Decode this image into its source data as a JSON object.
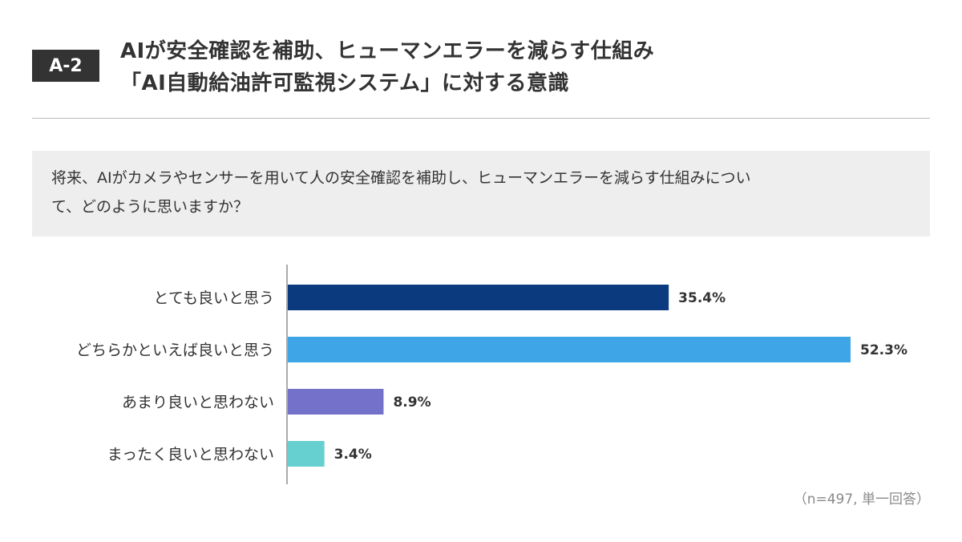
{
  "header": {
    "badge": "A-2",
    "title_line1": "AIが安全確認を補助、ヒューマンエラーを減らす仕組み",
    "title_line2": "「AI自動給油許可監視システム」に対する意識"
  },
  "question": {
    "line1": "将来、AIがカメラやセンサーを用いて人の安全確認を補助し、ヒューマンエラーを減らす仕組みについ",
    "line2": "て、どのように思いますか？"
  },
  "note": "（n=497, 単一回答）",
  "chart_data": {
    "type": "bar",
    "orientation": "horizontal",
    "categories": [
      "とても良いと思う",
      "どちらかといえば良いと思う",
      "あまり良いと思わない",
      "まったく良いと思わない"
    ],
    "values": [
      35.4,
      52.3,
      8.9,
      3.4
    ],
    "value_labels": [
      "35.4%",
      "52.3%",
      "8.9%",
      "3.4%"
    ],
    "unit": "%",
    "colors": [
      "#0b3a7e",
      "#3ea6e6",
      "#7371c9",
      "#66cfcf"
    ],
    "xlim": [
      0,
      52.3
    ],
    "grid": false,
    "legend": "none"
  }
}
